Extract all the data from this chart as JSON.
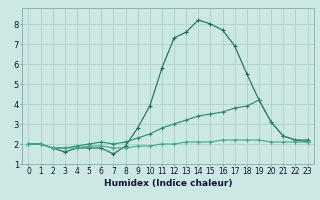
{
  "x": [
    0,
    1,
    2,
    3,
    4,
    5,
    6,
    7,
    8,
    9,
    10,
    11,
    12,
    13,
    14,
    15,
    16,
    17,
    18,
    19,
    20,
    21,
    22,
    23
  ],
  "line1": [
    2.0,
    2.0,
    1.8,
    1.6,
    1.8,
    1.8,
    1.8,
    1.5,
    1.9,
    2.8,
    3.9,
    5.8,
    7.3,
    7.6,
    8.2,
    8.0,
    7.7,
    6.9,
    5.5,
    4.2,
    3.1,
    2.4,
    2.2,
    2.2
  ],
  "line2": [
    2.0,
    2.0,
    1.8,
    1.8,
    1.9,
    2.0,
    2.1,
    2.0,
    2.1,
    2.3,
    2.5,
    2.8,
    3.0,
    3.2,
    3.4,
    3.5,
    3.6,
    3.8,
    3.9,
    4.2,
    3.1,
    2.4,
    2.2,
    2.1
  ],
  "line3": [
    2.0,
    2.0,
    1.8,
    1.8,
    1.8,
    1.9,
    1.9,
    1.8,
    1.8,
    1.9,
    1.9,
    2.0,
    2.0,
    2.1,
    2.1,
    2.1,
    2.2,
    2.2,
    2.2,
    2.2,
    2.1,
    2.1,
    2.1,
    2.1
  ],
  "line_color1": "#1a6b5a",
  "line_color2": "#2a8870",
  "line_color3": "#3aaa8a",
  "bg_color": "#cce8e4",
  "grid_color": "#aaccc8",
  "xlabel": "Humidex (Indice chaleur)",
  "ylim": [
    1.0,
    8.8
  ],
  "xlim": [
    -0.5,
    23.5
  ],
  "yticks": [
    1,
    2,
    3,
    4,
    5,
    6,
    7,
    8
  ],
  "xticks": [
    0,
    1,
    2,
    3,
    4,
    5,
    6,
    7,
    8,
    9,
    10,
    11,
    12,
    13,
    14,
    15,
    16,
    17,
    18,
    19,
    20,
    21,
    22,
    23
  ],
  "xlabel_fontsize": 6.5,
  "tick_fontsize": 5.5,
  "ytick_fontsize": 6.0
}
